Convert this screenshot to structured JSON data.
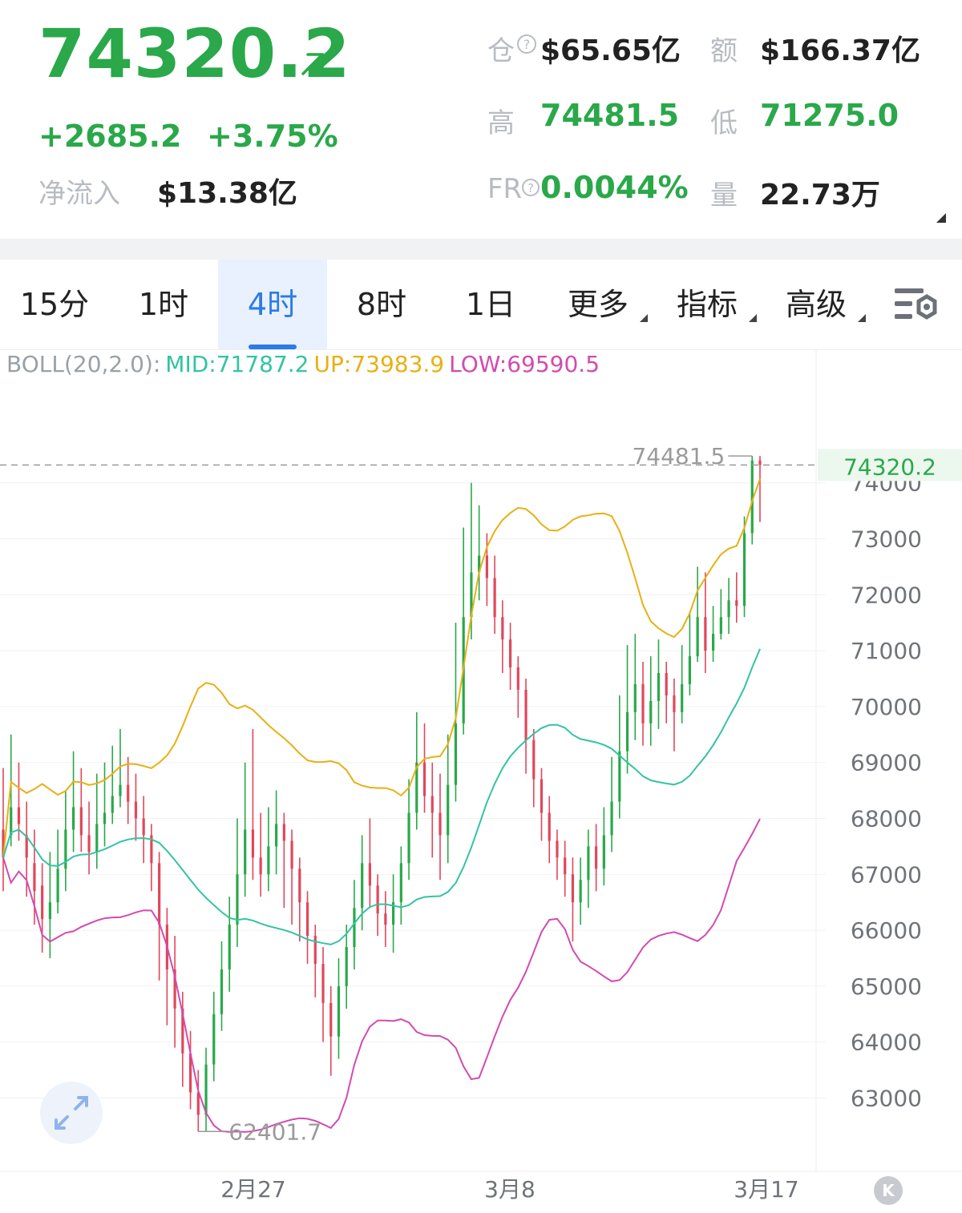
{
  "header": {
    "price": "74320.2",
    "change": "+2685.2",
    "change_pct": "+3.75%",
    "net_inflow_label": "净流入",
    "net_inflow_value": "$13.38亿",
    "open_interest_label": "仓",
    "open_interest_value": "$65.65亿",
    "amount_label": "额",
    "amount_value": "$166.37亿",
    "high_label": "高",
    "high_value": "74481.5",
    "low_label": "低",
    "low_value": "71275.0",
    "fr_label": "FR",
    "fr_value": "0.0044%",
    "volume_label": "量",
    "volume_value": "22.73万"
  },
  "tabs": [
    {
      "label": "15分",
      "active": false
    },
    {
      "label": "1时",
      "active": false
    },
    {
      "label": "4时",
      "active": true
    },
    {
      "label": "8时",
      "active": false
    },
    {
      "label": "1日",
      "active": false
    },
    {
      "label": "更多",
      "active": false,
      "dropdown": true
    },
    {
      "label": "指标",
      "active": false,
      "dropdown": true
    },
    {
      "label": "高级",
      "active": false,
      "dropdown": true
    }
  ],
  "indicator": {
    "name": "BOLL(20,2.0):",
    "mid": "MID:71787.2",
    "up": "UP:73983.9",
    "low": "LOW:69590.5"
  },
  "colors": {
    "green": "#2aa84a",
    "red": "#e0475b",
    "mid": "#34c3a3",
    "up": "#e8b014",
    "low": "#d24bb0",
    "accent": "#2d7be6"
  },
  "icons": [
    "arrow-up-right-icon",
    "info-icon",
    "chart-settings-icon",
    "expand-icon",
    "k-icon"
  ],
  "chart_data": {
    "type": "candlestick",
    "ylim": [
      62000,
      74900
    ],
    "y_ticks": [
      "74000",
      "73000",
      "72000",
      "71000",
      "70000",
      "69000",
      "68000",
      "67000",
      "66000",
      "65000",
      "64000",
      "63000"
    ],
    "x_labels": [
      "2月27",
      "3月8",
      "3月17"
    ],
    "current_price_label": "74320.2",
    "current_price": 74320.2,
    "max_label": "74481.5",
    "max_value": 74481.5,
    "min_label": "62401.7",
    "min_value": 62401.7,
    "candles": [
      [
        67800,
        67300,
        68900,
        66700
      ],
      [
        67700,
        68200,
        69500,
        67500
      ],
      [
        68200,
        67900,
        69000,
        67600
      ],
      [
        67700,
        67300,
        68300,
        66600
      ],
      [
        67200,
        66700,
        67800,
        66100
      ],
      [
        66800,
        66200,
        67200,
        65600
      ],
      [
        66200,
        66500,
        67400,
        65500
      ],
      [
        66500,
        67100,
        67800,
        66300
      ],
      [
        67100,
        67800,
        68500,
        66700
      ],
      [
        67800,
        68200,
        69200,
        67400
      ],
      [
        68200,
        67700,
        68900,
        67400
      ],
      [
        67700,
        67400,
        68300,
        67000
      ],
      [
        67400,
        67900,
        68800,
        67100
      ],
      [
        67900,
        68100,
        69000,
        67500
      ],
      [
        68100,
        68400,
        69300,
        67900
      ],
      [
        68400,
        68600,
        69600,
        68200
      ],
      [
        68600,
        68300,
        69100,
        67900
      ],
      [
        68300,
        68000,
        68800,
        67600
      ],
      [
        68000,
        67700,
        68400,
        67200
      ],
      [
        67700,
        67200,
        67900,
        66700
      ],
      [
        67200,
        66100,
        67400,
        65100
      ],
      [
        66100,
        65300,
        66400,
        64300
      ],
      [
        65300,
        64600,
        65900,
        63900
      ],
      [
        64600,
        63800,
        64900,
        63200
      ],
      [
        63800,
        63100,
        64200,
        62800
      ],
      [
        63100,
        62700,
        63500,
        62400
      ],
      [
        62700,
        63600,
        63900,
        62400
      ],
      [
        63600,
        64500,
        64900,
        63300
      ],
      [
        64500,
        65300,
        65800,
        64200
      ],
      [
        65300,
        66100,
        66600,
        64900
      ],
      [
        66100,
        67000,
        68000,
        65700
      ],
      [
        67000,
        67800,
        69000,
        66600
      ],
      [
        67800,
        67300,
        69600,
        66900
      ],
      [
        67300,
        67000,
        68100,
        66600
      ],
      [
        67000,
        67500,
        68200,
        66700
      ],
      [
        67500,
        67900,
        68500,
        67000
      ],
      [
        67900,
        67600,
        68100,
        66400
      ],
      [
        67600,
        67100,
        67800,
        66100
      ],
      [
        67100,
        66500,
        67300,
        65800
      ],
      [
        66500,
        65900,
        66700,
        65400
      ],
      [
        65900,
        65400,
        66100,
        64800
      ],
      [
        65400,
        64700,
        65700,
        64000
      ],
      [
        64700,
        64100,
        65000,
        63400
      ],
      [
        64100,
        65000,
        65500,
        63700
      ],
      [
        65000,
        65700,
        66100,
        64600
      ],
      [
        65700,
        66400,
        66900,
        65300
      ],
      [
        66400,
        67200,
        67700,
        66000
      ],
      [
        67200,
        66800,
        68000,
        66400
      ],
      [
        66800,
        66300,
        67000,
        65900
      ],
      [
        66300,
        66100,
        66700,
        65700
      ],
      [
        66100,
        66500,
        67000,
        65600
      ],
      [
        66500,
        67200,
        67500,
        66100
      ],
      [
        67200,
        68100,
        68700,
        66900
      ],
      [
        68100,
        69000,
        69900,
        67800
      ],
      [
        69000,
        68400,
        69700,
        68100
      ],
      [
        68400,
        68100,
        69000,
        67300
      ],
      [
        68100,
        67700,
        68800,
        66900
      ],
      [
        67700,
        68600,
        69500,
        67200
      ],
      [
        68600,
        69700,
        71500,
        68300
      ],
      [
        69700,
        71600,
        73200,
        69500
      ],
      [
        71600,
        72400,
        74000,
        71200
      ],
      [
        72400,
        72700,
        73600,
        71900
      ],
      [
        72700,
        72300,
        73100,
        71800
      ],
      [
        72300,
        71600,
        72700,
        71300
      ],
      [
        71600,
        71200,
        71900,
        70600
      ],
      [
        71200,
        70700,
        71500,
        70300
      ],
      [
        70700,
        70300,
        70900,
        69800
      ],
      [
        70300,
        69400,
        70500,
        68800
      ],
      [
        69400,
        68700,
        69600,
        68200
      ],
      [
        68700,
        68100,
        68900,
        67600
      ],
      [
        68100,
        67600,
        68400,
        67200
      ],
      [
        67600,
        67300,
        67800,
        66900
      ],
      [
        67300,
        67000,
        67600,
        66600
      ],
      [
        67000,
        66500,
        67300,
        65800
      ],
      [
        66500,
        66900,
        67300,
        66100
      ],
      [
        66900,
        67500,
        67800,
        66400
      ],
      [
        67500,
        67100,
        67900,
        66700
      ],
      [
        67100,
        67700,
        68200,
        66800
      ],
      [
        67700,
        68300,
        69100,
        67400
      ],
      [
        68300,
        69200,
        70200,
        68000
      ],
      [
        69200,
        69900,
        71100,
        68800
      ],
      [
        69900,
        70400,
        71300,
        69400
      ],
      [
        70400,
        69700,
        70800,
        69300
      ],
      [
        69700,
        70100,
        70900,
        69300
      ],
      [
        70100,
        70600,
        71200,
        69600
      ],
      [
        70600,
        70200,
        70800,
        69700
      ],
      [
        70200,
        69900,
        70500,
        69200
      ],
      [
        69900,
        70400,
        71100,
        69700
      ],
      [
        70400,
        70900,
        71700,
        70200
      ],
      [
        70900,
        71600,
        72500,
        70800
      ],
      [
        71600,
        71000,
        72400,
        70600
      ],
      [
        71000,
        71300,
        71800,
        70800
      ],
      [
        71300,
        71600,
        72100,
        71200
      ],
      [
        71600,
        71900,
        72300,
        71300
      ],
      [
        71900,
        71800,
        72400,
        71500
      ],
      [
        71800,
        73100,
        73400,
        71600
      ],
      [
        73100,
        74400,
        74481.5,
        72900
      ],
      [
        74400,
        74320.2,
        74481.5,
        73300
      ]
    ]
  }
}
